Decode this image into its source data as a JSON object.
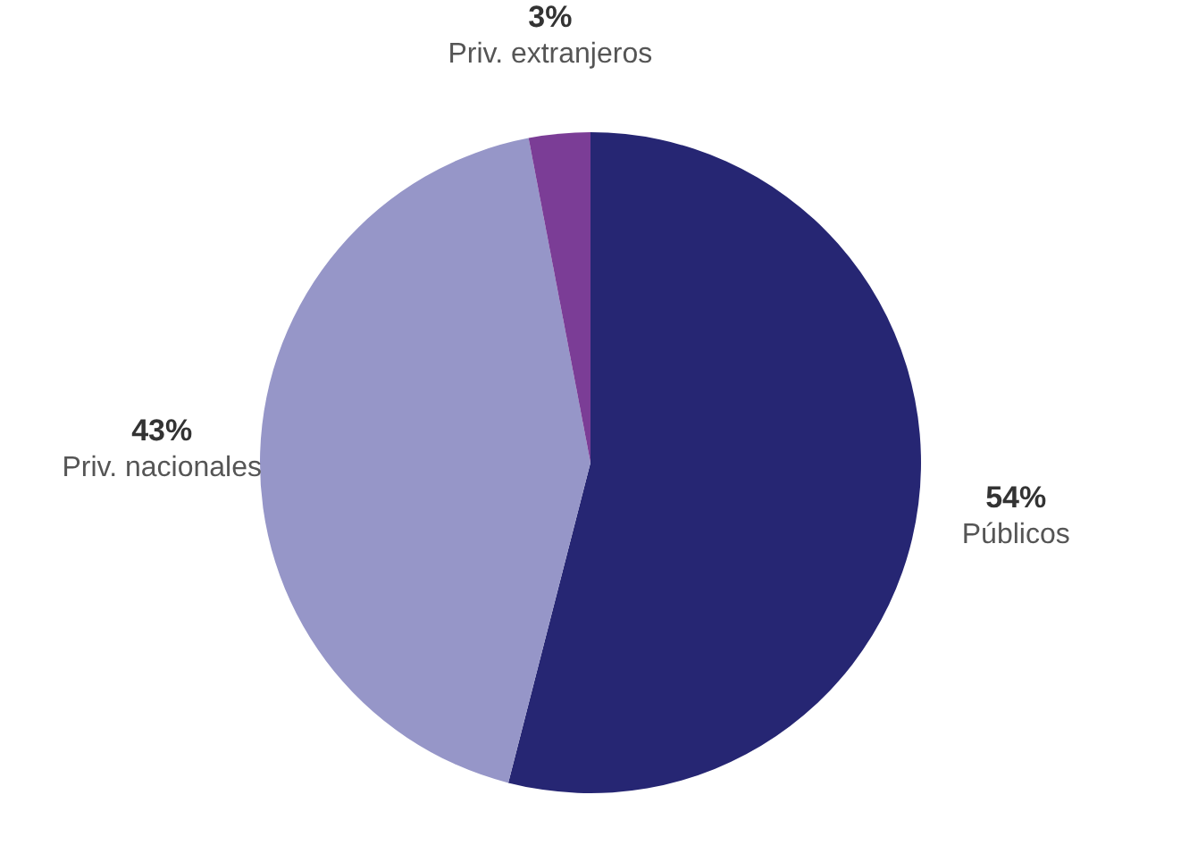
{
  "chart_data": {
    "type": "pie",
    "categories": [
      "Públicos",
      "Priv. nacionales",
      "Priv. extranjeros"
    ],
    "values": [
      54,
      43,
      3
    ],
    "colors": [
      "#262673",
      "#9696c8",
      "#7b3d96"
    ],
    "value_labels": [
      "54%",
      "43%",
      "3%"
    ],
    "legend": false
  }
}
